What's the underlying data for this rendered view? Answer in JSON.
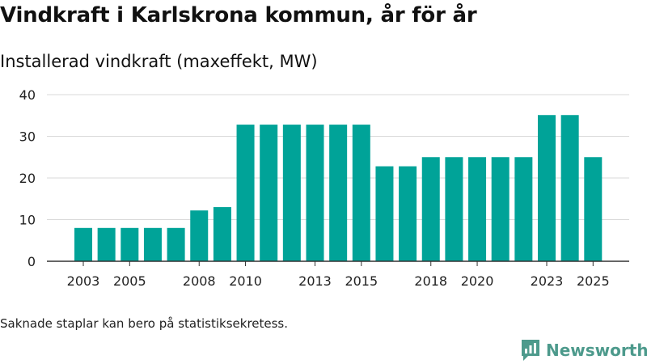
{
  "header": {
    "title": "Vindkraft i Karlskrona kommun, år för år",
    "subtitle": "Installerad vindkraft (maxeffekt, MW)"
  },
  "footer": {
    "note": "Saknade staplar kan bero på statistiksekretess.",
    "brand": "Newsworthy"
  },
  "colors": {
    "bar": "#00a398",
    "grid": "#d9d9d9",
    "axis": "#333333",
    "brand": "#4d9a8c"
  },
  "icons": {
    "brand": "newsworthy-logo-icon"
  },
  "chart_data": {
    "type": "bar",
    "title": "Installerad vindkraft (maxeffekt, MW)",
    "xlabel": "",
    "ylabel": "",
    "ylim": [
      0,
      40
    ],
    "yticks": [
      0,
      10,
      20,
      30,
      40
    ],
    "grid": true,
    "categories": [
      "2003",
      "2004",
      "2005",
      "2006",
      "2007",
      "2008",
      "2009",
      "2010",
      "2011",
      "2012",
      "2013",
      "2014",
      "2015",
      "2016",
      "2017",
      "2018",
      "2019",
      "2020",
      "2021",
      "2022",
      "2023",
      "2024",
      "2025"
    ],
    "values": [
      8,
      8,
      8,
      8,
      8,
      12.2,
      13,
      32.8,
      32.8,
      32.8,
      32.8,
      32.8,
      32.8,
      22.8,
      22.8,
      25,
      25,
      25,
      25,
      25,
      35.1,
      35.1,
      25
    ],
    "xtick_labels": [
      "2003",
      "2005",
      "2008",
      "2010",
      "2013",
      "2015",
      "2018",
      "2020",
      "2023",
      "2025"
    ]
  }
}
